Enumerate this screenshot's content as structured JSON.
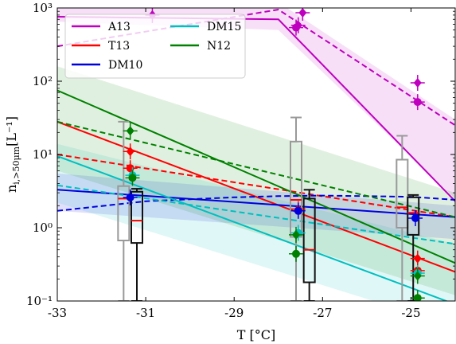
{
  "chart_data": {
    "type": "line",
    "xlabel": "T [°C]",
    "ylabel": "n",
    "ylabel_sub": "i,>50μm",
    "ylabel_unit": "[L⁻¹]",
    "xlim": [
      -33,
      -24
    ],
    "ylim": [
      0.1,
      1000
    ],
    "yscale": "log",
    "grid": false,
    "legend_placement": "top-left",
    "x_ticks": [
      -33,
      -31,
      -29,
      -27,
      -25
    ],
    "x_tick_labels": [
      "-33",
      "-31",
      "-29",
      "-27",
      "-25"
    ],
    "y_ticks": [
      0.1,
      1,
      10,
      100,
      1000
    ],
    "y_tick_labels": [
      "10⁻¹",
      "10⁰",
      "10¹",
      "10²",
      "10³"
    ],
    "series": [
      {
        "name": "A13",
        "color": "#bf00bf",
        "solid": {
          "x": [
            -33,
            -28,
            -24
          ],
          "y": [
            760,
            700,
            2.3
          ]
        },
        "dashed": {
          "x": [
            -33,
            -28,
            -24
          ],
          "y": [
            300,
            950,
            25
          ]
        },
        "band": {
          "x": [
            -33,
            -28,
            -24
          ],
          "lower": [
            650,
            500,
            2.5
          ],
          "upper": [
            1200,
            1200,
            30
          ]
        }
      },
      {
        "name": "T13",
        "color": "#ff0000",
        "solid": {
          "x": [
            -33,
            -24
          ],
          "y": [
            28,
            0.25
          ]
        },
        "dashed": {
          "x": [
            -33,
            -24
          ],
          "y": [
            10,
            1.4
          ]
        }
      },
      {
        "name": "DM10",
        "color": "#0000dd",
        "solid": {
          "x": [
            -33,
            -24
          ],
          "y": [
            3.3,
            1.4
          ]
        },
        "dashed": {
          "x": [
            -33,
            -31,
            -29,
            -28,
            -27,
            -25,
            -24
          ],
          "y": [
            1.7,
            2.3,
            2.6,
            2.7,
            2.75,
            2.65,
            2.4
          ]
        },
        "band": {
          "x": [
            -33,
            -24
          ],
          "lower": [
            1.7,
            0.7
          ],
          "upper": [
            5.5,
            2.0
          ]
        }
      },
      {
        "name": "DM15",
        "color": "#00bfbf",
        "solid": {
          "x": [
            -33,
            -24
          ],
          "y": [
            9.5,
            0.09
          ]
        },
        "dashed": {
          "x": [
            -33,
            -24
          ],
          "y": [
            3.8,
            0.6
          ]
        },
        "band": {
          "x": [
            -33,
            -24
          ],
          "lower": [
            2.2,
            0.045
          ],
          "upper": [
            14,
            0.6
          ]
        }
      },
      {
        "name": "N12",
        "color": "#008000",
        "solid": {
          "x": [
            -33,
            -24
          ],
          "y": [
            75,
            0.33
          ]
        },
        "dashed": {
          "x": [
            -33,
            -24
          ],
          "y": [
            28,
            1.4
          ]
        },
        "band": {
          "x": [
            -33,
            -24
          ],
          "lower": [
            6,
            0.12
          ],
          "upper": [
            160,
            3.0
          ]
        }
      }
    ],
    "boxes": [
      {
        "x": -31.5,
        "color": "#999999",
        "whisker_low": 0.1,
        "q1": 0.67,
        "median": 2.5,
        "q3": 3.7,
        "whisker_high": 28
      },
      {
        "x": -31.2,
        "color": "#111111",
        "whisker_low": 0.1,
        "q1": 0.62,
        "median": 1.25,
        "q3": 3.1,
        "whisker_high": 3.4
      },
      {
        "x": -27.6,
        "color": "#999999",
        "whisker_low": 0.1,
        "q1": 0.75,
        "median": 2.4,
        "q3": 15,
        "whisker_high": 32
      },
      {
        "x": -27.3,
        "color": "#111111",
        "whisker_low": 0.1,
        "q1": 0.18,
        "median": 0.5,
        "q3": 2.5,
        "whisker_high": 3.3
      },
      {
        "x": -25.2,
        "color": "#999999",
        "whisker_low": 0.1,
        "q1": 1.0,
        "median": 1.9,
        "q3": 8.5,
        "whisker_high": 18
      },
      {
        "x": -24.95,
        "color": "#111111",
        "whisker_low": 0.1,
        "q1": 0.8,
        "median": 1.6,
        "q3": 2.6,
        "whisker_high": 2.8
      }
    ],
    "markers": [
      {
        "x": -30.85,
        "y": 800,
        "color": "#bf00bf",
        "shape": "diamond"
      },
      {
        "x": -27.55,
        "y": 580,
        "color": "#bf00bf",
        "shape": "diamond"
      },
      {
        "x": -27.45,
        "y": 860,
        "color": "#bf00bf",
        "shape": "diamond"
      },
      {
        "x": -27.6,
        "y": 540,
        "color": "#bf00bf",
        "shape": "circle"
      },
      {
        "x": -24.85,
        "y": 95,
        "color": "#bf00bf",
        "shape": "diamond"
      },
      {
        "x": -24.85,
        "y": 52,
        "color": "#bf00bf",
        "shape": "circle"
      },
      {
        "x": -31.35,
        "y": 11,
        "color": "#ff0000",
        "shape": "diamond"
      },
      {
        "x": -31.35,
        "y": 6.5,
        "color": "#ff0000",
        "shape": "circle"
      },
      {
        "x": -27.55,
        "y": 1.8,
        "color": "#ff0000",
        "shape": "diamond"
      },
      {
        "x": -24.85,
        "y": 0.38,
        "color": "#ff0000",
        "shape": "diamond"
      },
      {
        "x": -24.85,
        "y": 0.26,
        "color": "#ff0000",
        "shape": "circle"
      },
      {
        "x": -31.35,
        "y": 2.6,
        "color": "#0000dd",
        "shape": "circle"
      },
      {
        "x": -27.55,
        "y": 1.7,
        "color": "#0000dd",
        "shape": "circle"
      },
      {
        "x": -24.9,
        "y": 1.35,
        "color": "#0000dd",
        "shape": "circle"
      },
      {
        "x": -31.3,
        "y": 5.2,
        "color": "#00bfbf",
        "shape": "circle"
      },
      {
        "x": -27.55,
        "y": 0.85,
        "color": "#00bfbf",
        "shape": "circle"
      },
      {
        "x": -24.85,
        "y": 0.24,
        "color": "#00bfbf",
        "shape": "circle"
      },
      {
        "x": -31.35,
        "y": 21,
        "color": "#008000",
        "shape": "diamond"
      },
      {
        "x": -31.3,
        "y": 4.8,
        "color": "#008000",
        "shape": "circle"
      },
      {
        "x": -27.6,
        "y": 0.8,
        "color": "#008000",
        "shape": "diamond"
      },
      {
        "x": -27.6,
        "y": 0.44,
        "color": "#008000",
        "shape": "circle"
      },
      {
        "x": -24.85,
        "y": 0.22,
        "color": "#008000",
        "shape": "diamond"
      },
      {
        "x": -24.85,
        "y": 0.11,
        "color": "#008000",
        "shape": "circle"
      }
    ]
  }
}
